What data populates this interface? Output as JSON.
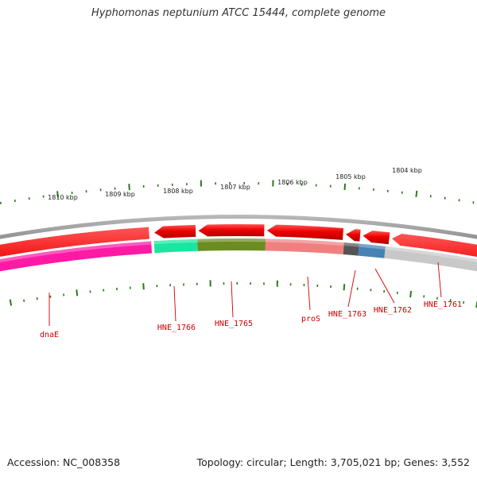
{
  "title": "Hyphomonas neptunium ATCC 15444, complete genome",
  "footer": {
    "accession": "Accession: NC_008358",
    "summary": "Topology: circular; Length: 3,705,021 bp; Genes: 3,552"
  },
  "scale": {
    "unit": "kbp",
    "labels": [
      "1804 kbp",
      "1805 kbp",
      "1806 kbp",
      "1807 kbp",
      "1808 kbp",
      "1809 kbp",
      "1810 kbp"
    ],
    "tick_color": "#2a7a1a"
  },
  "strands": {
    "forward_color": "#ee0000",
    "backbone_color": "#888888"
  },
  "genes": [
    {
      "label": "dnaE",
      "color": "#ff1aa6"
    },
    {
      "label": "HNE_1766",
      "color": "#19e6a0"
    },
    {
      "label": "HNE_1765",
      "color": "#6b8c1f"
    },
    {
      "label": "proS",
      "color": "#f08080"
    },
    {
      "label": "HNE_1763",
      "color": "#555555"
    },
    {
      "label": "HNE_1762",
      "color": "#4682b4"
    },
    {
      "label": "HNE_1761",
      "color": "#c8c8c8"
    }
  ]
}
